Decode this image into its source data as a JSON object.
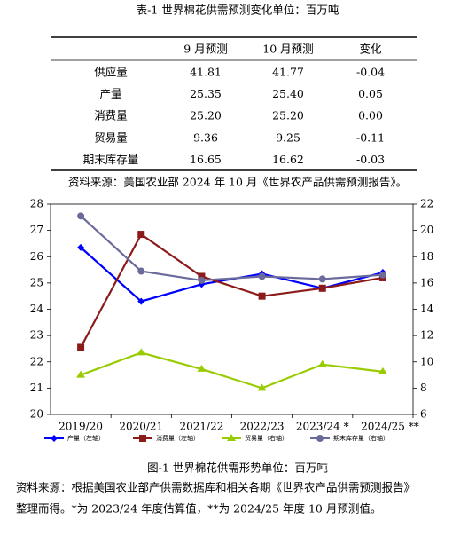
{
  "table": {
    "title": "表-1 世界棉花供需预测变化单位：百万吨",
    "columns": [
      "9 月预测",
      "10 月预测",
      "变化"
    ],
    "rows": [
      [
        "供应量",
        "41.81",
        "41.77",
        "-0.04"
      ],
      [
        "产量",
        "25.35",
        "25.40",
        "0.05"
      ],
      [
        "消费量",
        "25.20",
        "25.20",
        "0.00"
      ],
      [
        "贸易量",
        "9.36",
        "9.25",
        "-0.11"
      ],
      [
        "期末库存量",
        "16.65",
        "16.62",
        "-0.03"
      ]
    ],
    "source": "资料来源：美国农业部 2024 年 10 月《世界农产品供需预测报告》。"
  },
  "chart_data": {
    "type": "line",
    "categories": [
      "2019/20",
      "2020/21",
      "2021/22",
      "2022/23",
      "2023/24 *",
      "2024/25 **"
    ],
    "series": [
      {
        "name": "产量（左轴）",
        "color": "#0000ff",
        "marker": "diamond",
        "values": [
          26.35,
          24.3,
          24.95,
          25.35,
          24.8,
          25.4
        ]
      },
      {
        "name": "消费量（左轴）",
        "color": "#8b1a1a",
        "marker": "square",
        "values": [
          22.55,
          26.85,
          25.25,
          24.5,
          24.8,
          25.2
        ]
      },
      {
        "name": "贸易量（右轴）",
        "color": "#99cc00",
        "marker": "triangle",
        "axis": "y2",
        "values": [
          9.0,
          10.7,
          9.45,
          8.0,
          9.8,
          9.25
        ]
      },
      {
        "name": "期末库存量（右轴）",
        "color": "#6b6b9b",
        "marker": "circle",
        "axis": "y2",
        "values": [
          21.1,
          16.9,
          16.2,
          16.5,
          16.3,
          16.62
        ]
      }
    ],
    "ylim": [
      20,
      28
    ],
    "yticks": [
      20,
      21,
      22,
      23,
      24,
      25,
      26,
      27,
      28
    ],
    "y2lim": [
      6,
      22
    ],
    "y2ticks": [
      6,
      8,
      10,
      12,
      14,
      16,
      18,
      20,
      22
    ],
    "grid": false
  },
  "caption": "图-1 世界棉花供需形势单位：百万吨",
  "notes": [
    "资料来源：根据美国农业部产供需数据库和相关各期《世界农产品供需预测报告》",
    "整理而得。*为 2023/24 年度估算值，**为 2024/25 年度 10 月预测值。"
  ]
}
